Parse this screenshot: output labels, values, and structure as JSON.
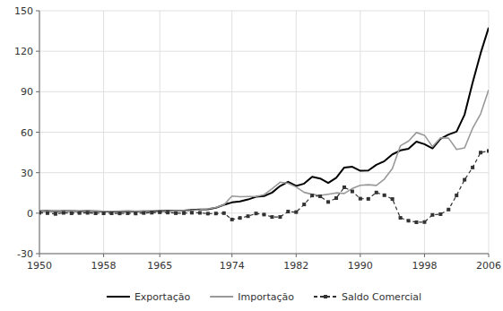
{
  "chart_data": {
    "type": "line",
    "x": [
      1950,
      1951,
      1952,
      1953,
      1954,
      1955,
      1956,
      1957,
      1958,
      1959,
      1960,
      1961,
      1962,
      1963,
      1964,
      1965,
      1966,
      1967,
      1968,
      1969,
      1970,
      1971,
      1972,
      1973,
      1974,
      1975,
      1976,
      1977,
      1978,
      1979,
      1980,
      1981,
      1982,
      1983,
      1984,
      1985,
      1986,
      1987,
      1988,
      1989,
      1990,
      1991,
      1992,
      1993,
      1994,
      1995,
      1996,
      1997,
      1998,
      1999,
      2000,
      2001,
      2002,
      2003,
      2004,
      2005,
      2006
    ],
    "series": [
      {
        "name": "Exportação",
        "color": "#000000",
        "line_style": "solid",
        "values": [
          1.36,
          1.77,
          1.42,
          1.54,
          1.56,
          1.42,
          1.48,
          1.39,
          1.24,
          1.28,
          1.27,
          1.4,
          1.21,
          1.41,
          1.43,
          1.6,
          1.74,
          1.65,
          1.88,
          2.31,
          2.74,
          2.9,
          3.99,
          6.2,
          7.95,
          8.67,
          10.13,
          12.12,
          12.66,
          15.24,
          20.13,
          23.29,
          20.18,
          21.9,
          27.01,
          25.64,
          22.35,
          26.22,
          33.79,
          34.38,
          31.41,
          31.62,
          35.86,
          38.55,
          43.55,
          46.51,
          47.75,
          53.0,
          51.14,
          48.01,
          55.09,
          58.29,
          60.44,
          73.08,
          96.68,
          118.51,
          137.47
        ]
      },
      {
        "name": "Importação",
        "color": "#999999",
        "line_style": "solid",
        "values": [
          1.08,
          1.73,
          1.99,
          1.31,
          1.63,
          1.31,
          1.24,
          1.49,
          1.35,
          1.37,
          1.46,
          1.46,
          1.47,
          1.29,
          1.09,
          0.95,
          1.3,
          1.67,
          1.85,
          1.99,
          2.51,
          3.24,
          4.24,
          6.19,
          12.64,
          12.21,
          12.38,
          12.35,
          13.68,
          18.08,
          22.96,
          22.09,
          19.4,
          15.43,
          13.92,
          13.17,
          14.05,
          15.05,
          14.61,
          18.26,
          20.66,
          21.04,
          20.55,
          25.26,
          33.08,
          49.97,
          53.35,
          59.75,
          57.74,
          49.3,
          55.84,
          55.6,
          47.24,
          48.33,
          62.84,
          73.6,
          91.35
        ]
      },
      {
        "name": "Saldo Comercial",
        "color": "#333333",
        "line_style": "dashed",
        "marker": "square",
        "values": [
          0.28,
          0.04,
          -0.57,
          0.23,
          -0.07,
          0.11,
          0.24,
          -0.1,
          -0.11,
          -0.09,
          -0.19,
          -0.06,
          -0.26,
          0.12,
          0.34,
          0.65,
          0.44,
          -0.02,
          0.03,
          0.32,
          0.23,
          -0.34,
          -0.25,
          0.01,
          -4.69,
          -3.54,
          -2.25,
          -0.23,
          -1.02,
          -2.84,
          -2.83,
          1.2,
          0.78,
          6.47,
          13.09,
          12.47,
          8.3,
          11.17,
          19.18,
          16.12,
          10.75,
          10.58,
          15.31,
          13.29,
          10.47,
          -3.46,
          -5.6,
          -6.75,
          -6.6,
          -1.29,
          -0.75,
          2.69,
          13.2,
          24.75,
          33.84,
          44.91,
          46.12
        ]
      }
    ],
    "xlim": [
      1950,
      2006
    ],
    "xticks": [
      1950,
      1958,
      1965,
      1974,
      1982,
      1990,
      1998,
      2006
    ],
    "ylim": [
      -30,
      150
    ],
    "yticks": [
      -30,
      0,
      30,
      60,
      90,
      120,
      150
    ],
    "grid": true,
    "legend": "bottom"
  }
}
